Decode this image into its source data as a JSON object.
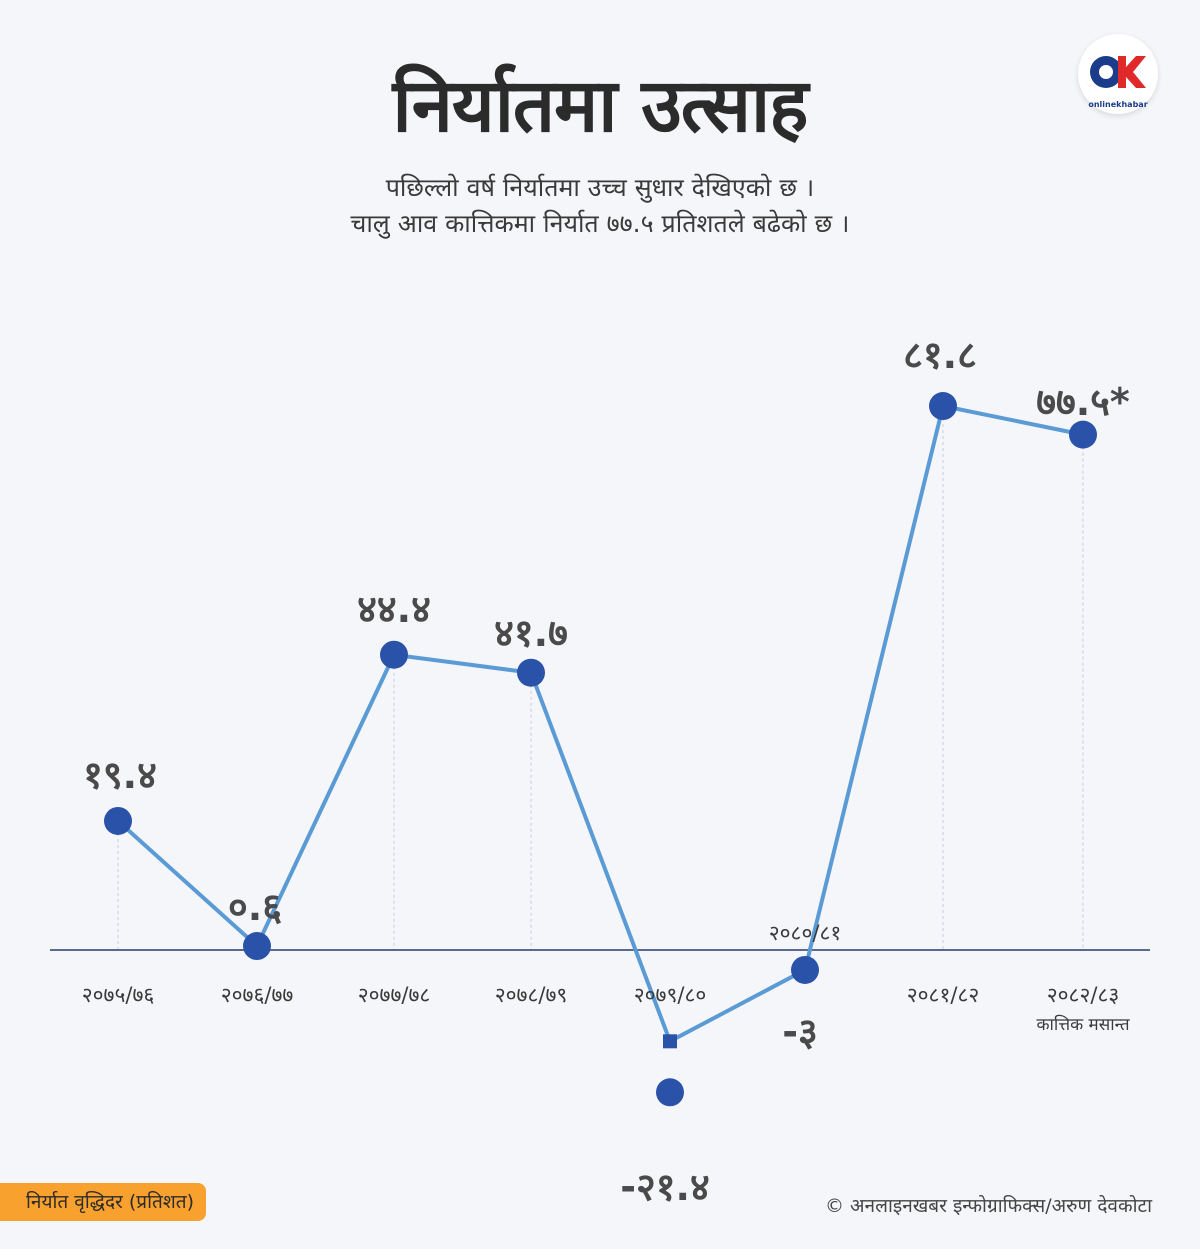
{
  "header": {
    "title": "निर्यातमा उत्साह",
    "subtitle_line1": "पछिल्लो वर्ष निर्यातमा उच्च सुधार देखिएको छ ।",
    "subtitle_line2": "चालु आव कात्तिकमा निर्यात ७७.५ प्रतिशतले बढेको छ ।"
  },
  "logo": {
    "word": "onlinekhabar",
    "colors": [
      "#1a3c8a",
      "#e02a2a"
    ]
  },
  "footer": {
    "badge_label": "निर्यात वृद्धिदर (प्रतिशत)",
    "credit": "© अनलाइनखबर इन्फोग्राफिक्स/अरुण देवकोटा"
  },
  "colors": {
    "line": "#5b9bd5",
    "marker": "#2a52a8",
    "axis": "#2a3a6a",
    "badge": "#f9a12e"
  },
  "chart_data": {
    "type": "line",
    "categories": [
      "२०७५/७६",
      "२०७६/७७",
      "२०७७/७८",
      "२०७८/७९",
      "२०७९/८०",
      "२०८०/८१",
      "२०८१/८२",
      "२०८२/८३"
    ],
    "category_notes": [
      "",
      "",
      "",
      "",
      "",
      "",
      "",
      "कात्तिक मसान्त"
    ],
    "values": [
      19.4,
      0.6,
      44.4,
      41.7,
      -21.4,
      -3,
      81.8,
      77.5
    ],
    "data_labels": [
      "१९.४",
      "०.६",
      "४४.४",
      "४१.७",
      "-२१.४",
      "-३",
      "८१.८",
      "७७.५*"
    ],
    "legend": "none",
    "grid": false
  }
}
